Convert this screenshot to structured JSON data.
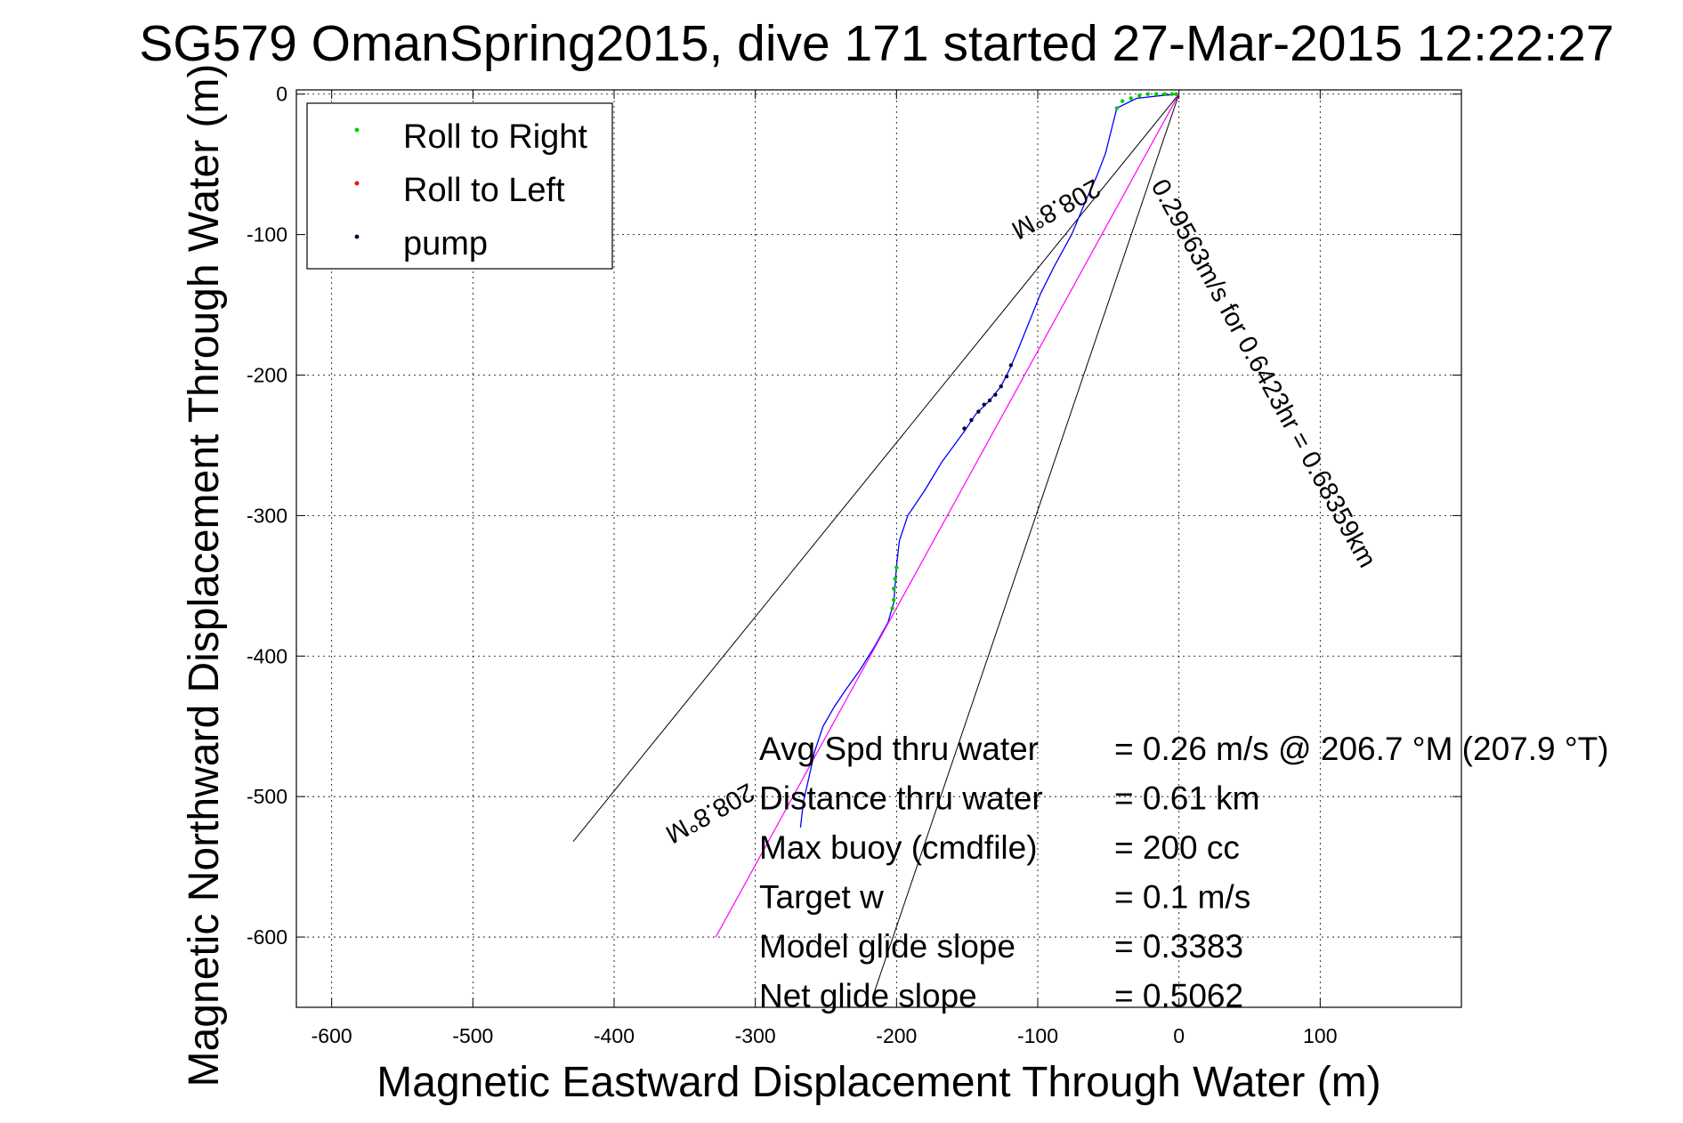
{
  "chart_data": {
    "type": "scatter",
    "title": "SG579 OmanSpring2015, dive 171 started 27-Mar-2015 12:22:27",
    "xlabel": "Magnetic Eastward Displacement Through Water (m)",
    "ylabel": "Magnetic Northward Displacement Through Water (m)",
    "xlim": [
      -625,
      200
    ],
    "ylim": [
      -650,
      3
    ],
    "xticks": [
      -600,
      -500,
      -400,
      -300,
      -200,
      -100,
      0,
      100
    ],
    "yticks": [
      0,
      -100,
      -200,
      -300,
      -400,
      -500,
      -600
    ],
    "xtick_labels": [
      "-600",
      "-500",
      "-400",
      "-300",
      "-200",
      "-100",
      "0",
      "100"
    ],
    "ytick_labels": [
      "0",
      "-100",
      "-200",
      "-300",
      "-400",
      "-500",
      "-600"
    ],
    "grid": true,
    "legend_position": "top-left",
    "legend": [
      {
        "label": "Roll to Right",
        "color": "#00cc00"
      },
      {
        "label": "Roll to Left",
        "color": "#ff0000"
      },
      {
        "label": "pump",
        "color": "#000033"
      }
    ],
    "series": [
      {
        "name": "track",
        "color": "#0000ff",
        "x": [
          0,
          -12,
          -30,
          -44,
          -47,
          -52,
          -58,
          -66,
          -76,
          -88,
          -98,
          -106,
          -114,
          -120,
          -126,
          -134,
          -144,
          -152,
          -168,
          -180,
          -192,
          -198,
          -200,
          -201,
          -202,
          -206,
          -216,
          -226,
          -236,
          -244,
          -252,
          -258,
          -262,
          -266,
          -268
        ],
        "y": [
          0,
          -1,
          -3,
          -10,
          -22,
          -42,
          -58,
          -76,
          -100,
          -122,
          -142,
          -162,
          -182,
          -196,
          -208,
          -218,
          -228,
          -240,
          -262,
          -282,
          -300,
          -318,
          -336,
          -350,
          -362,
          -376,
          -394,
          -410,
          -424,
          -436,
          -450,
          -468,
          -486,
          -504,
          -522
        ]
      },
      {
        "name": "Roll to Right",
        "color": "#00cc00",
        "x": [
          -44,
          -40,
          -34,
          -28,
          -22,
          -16,
          -10,
          -5,
          -2,
          -200,
          -201,
          -202,
          -202,
          -203
        ],
        "y": [
          -10,
          -5,
          -3,
          -1,
          0,
          0,
          0,
          0,
          0,
          -337,
          -345,
          -352,
          -360,
          -366
        ]
      },
      {
        "name": "pump",
        "color": "#000033",
        "x": [
          -152,
          -147,
          -142,
          -138,
          -134,
          -130,
          -126,
          -122,
          -119
        ],
        "y": [
          -238,
          -232,
          -226,
          -221,
          -218,
          -214,
          -208,
          -201,
          -193
        ]
      },
      {
        "name": "heading line",
        "color": "#ff00ff",
        "x": [
          0,
          -328
        ],
        "y": [
          0,
          -600
        ]
      }
    ],
    "bounds_lines": [
      {
        "x": [
          0,
          -429
        ],
        "y": [
          0,
          -532
        ]
      },
      {
        "x": [
          0,
          -216
        ],
        "y": [
          0,
          -640
        ]
      }
    ],
    "annotations": [
      {
        "text": "208.8°M",
        "x": -60,
        "y": -60,
        "rotation": 151.2
      },
      {
        "text": "0.29563m/s for 0.6423hr = 0.68359km",
        "x": -20,
        "y": -65,
        "rotation": 61.2
      },
      {
        "text": "208.8°M",
        "x": -305,
        "y": -490,
        "rotation": 151.2
      }
    ],
    "stats": [
      {
        "label": "Avg Spd thru water",
        "value": "=  0.26 m/s @ 206.7 °M (207.9 °T)"
      },
      {
        "label": "Distance thru water",
        "value": "=  0.61 km"
      },
      {
        "label": "Max buoy (cmdfile)",
        "value": "= 200 cc"
      },
      {
        "label": "Target w",
        "value": "= 0.1 m/s"
      },
      {
        "label": "Model glide slope",
        "value": "= 0.3383"
      },
      {
        "label": "Net glide slope",
        "value": "= 0.5062"
      }
    ]
  }
}
